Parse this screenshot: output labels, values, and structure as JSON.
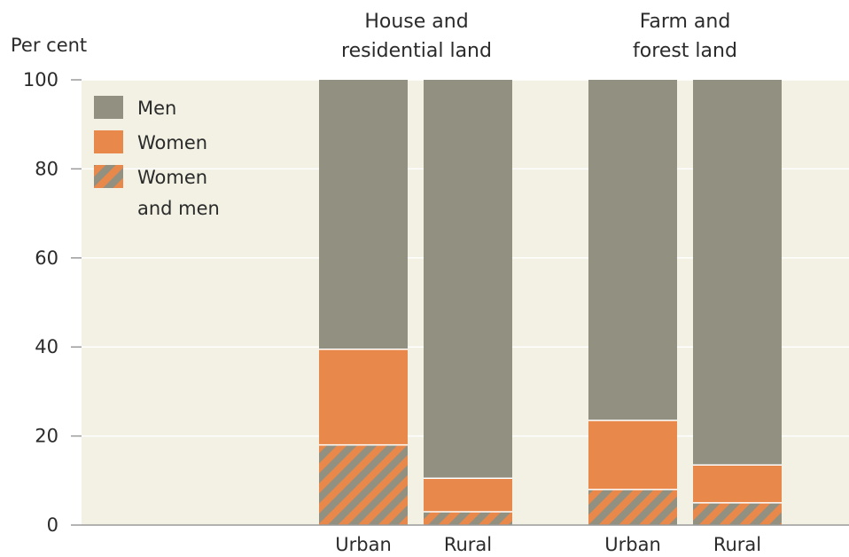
{
  "chart_data": {
    "type": "bar",
    "stacked": true,
    "ylabel": "Per cent",
    "ylim": [
      0,
      100
    ],
    "yticks": [
      0,
      20,
      40,
      60,
      80,
      100
    ],
    "grid": true,
    "legend_position": "top-left",
    "groups": [
      {
        "title_lines": [
          "House and",
          "residential land"
        ],
        "categories": [
          "Urban",
          "Rural"
        ],
        "series": [
          {
            "name": "Women and men",
            "values": [
              18,
              3
            ]
          },
          {
            "name": "Women",
            "values": [
              21.5,
              7.5
            ]
          },
          {
            "name": "Men",
            "values": [
              60.5,
              89.5
            ]
          }
        ]
      },
      {
        "title_lines": [
          "Farm and",
          "forest land"
        ],
        "categories": [
          "Urban",
          "Rural"
        ],
        "series": [
          {
            "name": "Women and men",
            "values": [
              8,
              5
            ]
          },
          {
            "name": "Women",
            "values": [
              15.5,
              8.5
            ]
          },
          {
            "name": "Men",
            "values": [
              76.5,
              86.5
            ]
          }
        ]
      }
    ],
    "legend": [
      {
        "name": "Men",
        "style": "solid",
        "color": "#929080"
      },
      {
        "name": "Women",
        "style": "solid",
        "color": "#e8884a"
      },
      {
        "name_lines": [
          "Women",
          "and men"
        ],
        "style": "hatched",
        "colors": [
          "#e8884a",
          "#929080"
        ]
      }
    ],
    "colors": {
      "men": "#929080",
      "women": "#e8884a",
      "background": "#f2f1e3",
      "grid": "#ffffff"
    }
  }
}
